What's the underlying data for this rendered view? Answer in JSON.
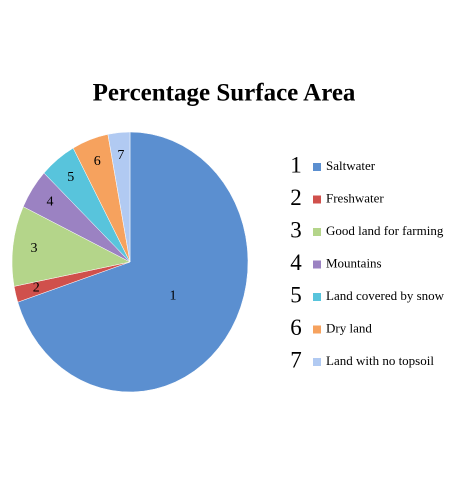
{
  "chart_data": {
    "type": "pie",
    "title": "Percentage Surface Area",
    "categories": [
      "Saltwater",
      "Freshwater",
      "Good land for farming",
      "Mountains",
      "Land covered by snow",
      "Dry land",
      "Land with no topsoil"
    ],
    "labels": [
      "1",
      "2",
      "3",
      "4",
      "5",
      "6",
      "7"
    ],
    "values": [
      70,
      2,
      10,
      5,
      5,
      5,
      3
    ],
    "colors": [
      "#5b8fd0",
      "#d0504c",
      "#b4d58a",
      "#9b82c2",
      "#58c4dc",
      "#f6a25e",
      "#b1caf2"
    ],
    "legend": "right"
  }
}
